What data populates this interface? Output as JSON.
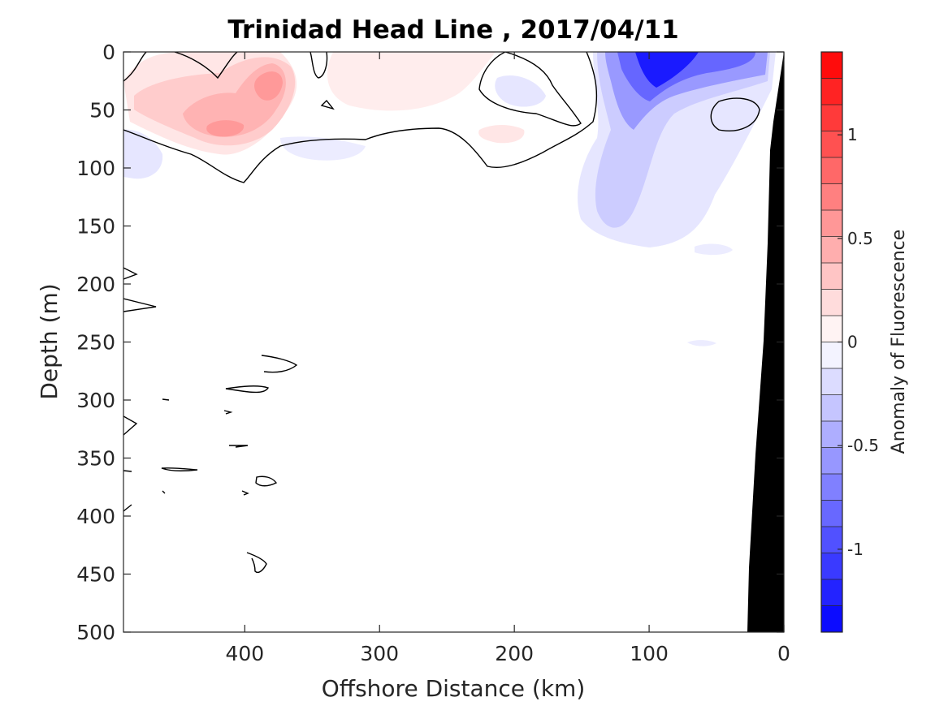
{
  "chart_data": {
    "type": "heatmap",
    "title": "Trinidad Head Line , 2017/04/11",
    "xlabel": "Offshore Distance (km)",
    "ylabel": "Depth (m)",
    "xlim": [
      490,
      0
    ],
    "ylim": [
      0,
      500
    ],
    "x_reversed": true,
    "y_reversed": true,
    "xticks": [
      400,
      300,
      200,
      100,
      0
    ],
    "yticks": [
      0,
      50,
      100,
      150,
      200,
      250,
      300,
      350,
      400,
      450,
      500
    ],
    "colorbar": {
      "label": "Anomaly of Fluorescence",
      "range": [
        -1.4,
        1.4
      ],
      "levels": 22,
      "ticks": [
        1,
        0.5,
        0,
        -0.5,
        -1
      ],
      "tick_labels": [
        "1",
        "0.5",
        "0",
        "-0.5",
        "-1"
      ],
      "colormap": "blue-white-red",
      "negative_color": "#0000ff",
      "positive_color": "#ff0000"
    },
    "features": [
      {
        "name": "positive anomaly",
        "x": [
          480,
          330
        ],
        "depth": [
          0,
          110
        ],
        "peak_value": 0.55,
        "peak_at": {
          "x": 380,
          "depth": 20
        }
      },
      {
        "name": "positive anomaly",
        "x": [
          320,
          130
        ],
        "depth": [
          0,
          90
        ],
        "peak_value": 0.15
      },
      {
        "name": "negative anomaly",
        "x": [
          140,
          10
        ],
        "depth": [
          0,
          170
        ],
        "peak_value": -1.4,
        "peak_at": {
          "x": 100,
          "depth": 15
        }
      },
      {
        "name": "negative anomaly",
        "x": [
          490,
          460
        ],
        "depth": [
          60,
          110
        ],
        "peak_value": -0.15
      }
    ],
    "seafloor_color": "#000000",
    "seafloor_depth_profile": {
      "x": [
        0,
        10,
        15,
        20,
        25
      ],
      "depth": [
        0,
        90,
        300,
        420,
        500
      ]
    }
  }
}
